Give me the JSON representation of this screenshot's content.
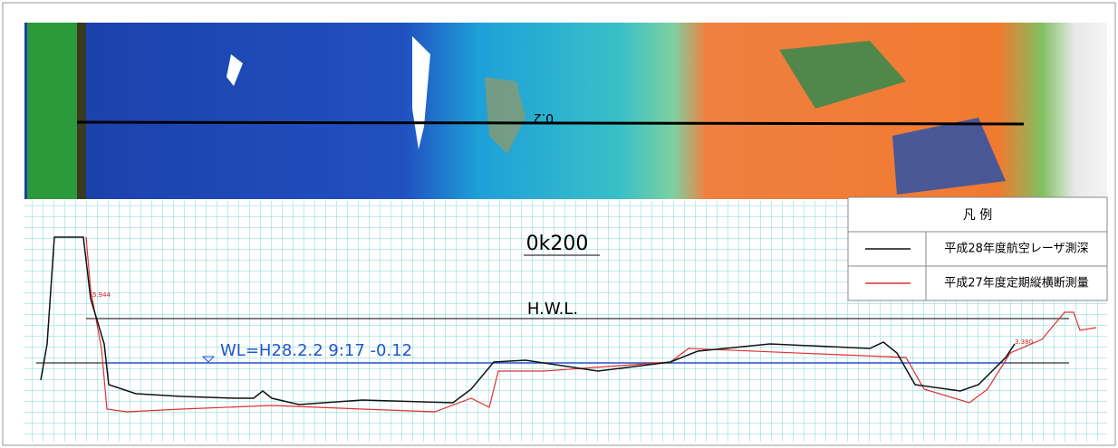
{
  "image": {
    "section_label": "0.2"
  },
  "profile": {
    "title": "0k200",
    "hwl_label": "H.W.L.",
    "water_level_label": "WL=H28.2.2 9:17 -0.12",
    "left_label": "5.944",
    "right_label": "3.380"
  },
  "legend": {
    "title": "凡 例",
    "items": [
      "平成28年度航空レーザ測深",
      "平成27年度定期縦横断測量"
    ]
  }
}
